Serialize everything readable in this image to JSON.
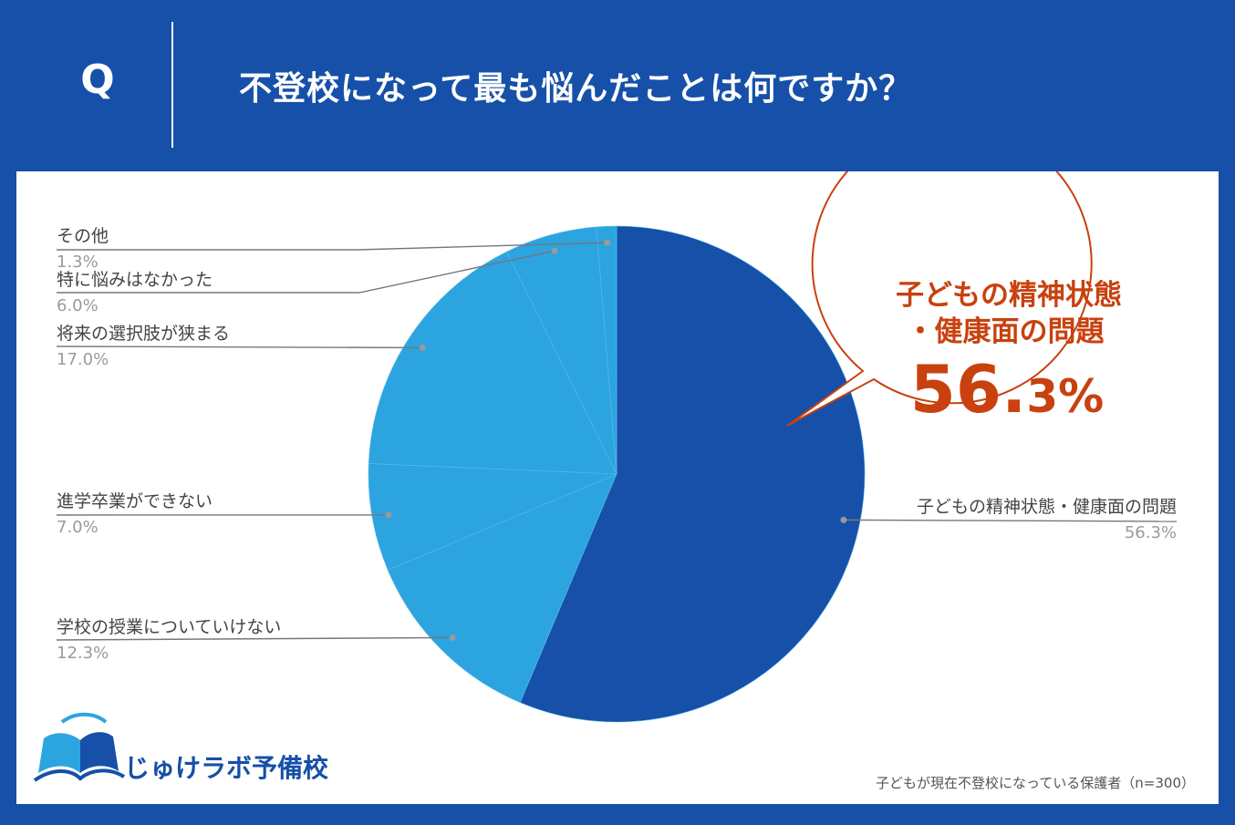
{
  "header": {
    "q_label": "Q",
    "title": "不登校になって最も悩んだことは何ですか？"
  },
  "chart_data": {
    "type": "pie",
    "title": "不登校になって最も悩んだことは何ですか？",
    "start": "12 o'clock",
    "direction": "clockwise",
    "slices": [
      {
        "label": "子どもの精神状態・健康面の問題",
        "value": 56.3,
        "display": "56.3%",
        "color": "#1650a8",
        "label_side": "right"
      },
      {
        "label": "学校の授業についていけない",
        "value": 12.3,
        "display": "12.3%",
        "color": "#2ca4e0",
        "label_side": "left"
      },
      {
        "label": "進学卒業ができない",
        "value": 7.0,
        "display": "7.0%",
        "color": "#2ca4e0",
        "label_side": "left"
      },
      {
        "label": "将来の選択肢が狭まる",
        "value": 17.0,
        "display": "17.0%",
        "color": "#2ca4e0",
        "label_side": "left"
      },
      {
        "label": "特に悩みはなかった",
        "value": 6.0,
        "display": "6.0%",
        "color": "#2ca4e0",
        "label_side": "left"
      },
      {
        "label": "その他",
        "value": 1.3,
        "display": "1.3%",
        "color": "#2ca4e0",
        "label_side": "left"
      }
    ]
  },
  "callout": {
    "line1": "子どもの精神状態",
    "line2": "・健康面の問題",
    "value_main": "56.",
    "value_decimal": "3",
    "value_unit": "%"
  },
  "footer": {
    "logo_text": "じゅけラボ予備校",
    "source": "子どもが現在不登校になっている保護者（n=300）"
  },
  "colors": {
    "background": "#1650a8",
    "primary_slice": "#1650a8",
    "secondary_slice": "#2ca4e0",
    "callout_accent": "#c8410f"
  }
}
